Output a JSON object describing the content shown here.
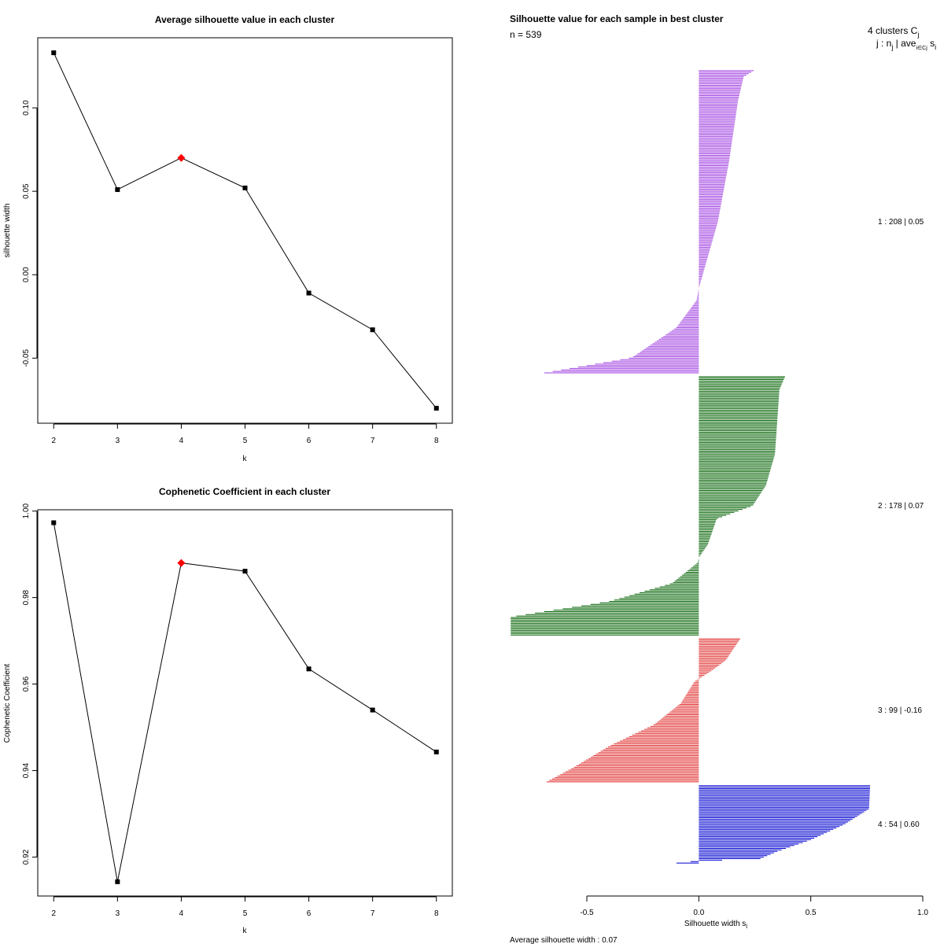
{
  "chart_data": [
    {
      "type": "line",
      "title": "Average silhouette value in each cluster",
      "xlabel": "k",
      "ylabel": "silhouette width",
      "x": [
        2,
        3,
        4,
        5,
        6,
        7,
        8
      ],
      "values": [
        0.133,
        0.051,
        0.07,
        0.052,
        -0.011,
        -0.033,
        -0.08
      ],
      "xlim": [
        1.75,
        8.25
      ],
      "ylim": [
        -0.089,
        0.142
      ],
      "xticks": [
        "2",
        "3",
        "4",
        "5",
        "6",
        "7",
        "8"
      ],
      "yticks": [
        -0.05,
        0.0,
        0.05,
        0.1
      ],
      "ytick_labels": [
        "-0.05",
        "0.00",
        "0.05",
        "0.10"
      ],
      "highlight_x": 4,
      "highlight_color": "#ff0000"
    },
    {
      "type": "line",
      "title": "Cophenetic Coefficient in each cluster",
      "xlabel": "k",
      "ylabel": "Cophenetic Coefficient",
      "x": [
        2,
        3,
        4,
        5,
        6,
        7,
        8
      ],
      "values": [
        0.9973,
        0.9143,
        0.988,
        0.9861,
        0.9635,
        0.954,
        0.9443
      ],
      "xlim": [
        1.75,
        8.25
      ],
      "ylim": [
        0.911,
        1.0003
      ],
      "xticks": [
        "2",
        "3",
        "4",
        "5",
        "6",
        "7",
        "8"
      ],
      "yticks": [
        0.92,
        0.94,
        0.96,
        0.98,
        1.0
      ],
      "ytick_labels": [
        "0.92",
        "0.94",
        "0.96",
        "0.98",
        "1.00"
      ],
      "highlight_x": 4,
      "highlight_color": "#ff0000"
    },
    {
      "type": "bar",
      "orientation": "horizontal",
      "title": "Silhouette value for each sample in best cluster",
      "subtitle": "n = 539",
      "header_line1": "4 clusters C",
      "header_line1_sub": "j",
      "header_line2": "j : n",
      "header_line2_sub": "j",
      "header_line2_rest": " | ave",
      "header_line2_sub2": "i∈Cj",
      "header_line2_tail": " s",
      "header_line2_sub3": "i",
      "xlabel": "Silhouette width s",
      "xlabel_sub": "i",
      "xlim": [
        -0.5,
        1.0
      ],
      "xticks": [
        -0.5,
        0.0,
        0.5,
        1.0
      ],
      "xtick_labels": [
        "-0.5",
        "0.0",
        "0.5",
        "1.0"
      ],
      "footer": "Average silhouette width :  0.07",
      "clusters": [
        {
          "label": "1 :  208  |  0.05",
          "n": 208,
          "avg": 0.05,
          "color": "#a040e0",
          "profile": [
            [
              0,
              0.245
            ],
            [
              0.02,
              0.2
            ],
            [
              0.1,
              0.175
            ],
            [
              0.3,
              0.135
            ],
            [
              0.5,
              0.085
            ],
            [
              0.72,
              0.0
            ],
            [
              0.76,
              -0.01
            ],
            [
              0.85,
              -0.1
            ],
            [
              0.95,
              -0.3
            ],
            [
              1.0,
              -0.69
            ]
          ]
        },
        {
          "label": "2 :  178  |  0.07",
          "n": 178,
          "avg": 0.07,
          "color": "#006000",
          "profile": [
            [
              0,
              0.385
            ],
            [
              0.05,
              0.36
            ],
            [
              0.3,
              0.34
            ],
            [
              0.42,
              0.3
            ],
            [
              0.5,
              0.24
            ],
            [
              0.55,
              0.08
            ],
            [
              0.65,
              0.04
            ],
            [
              0.7,
              0.0
            ],
            [
              0.72,
              -0.005
            ],
            [
              0.8,
              -0.12
            ],
            [
              0.87,
              -0.4
            ],
            [
              0.93,
              -0.84
            ],
            [
              1.0,
              -0.84
            ]
          ]
        },
        {
          "label": "3 :  99  |  -0.16",
          "n": 99,
          "avg": -0.16,
          "color": "#e03030",
          "profile": [
            [
              0,
              0.185
            ],
            [
              0.15,
              0.12
            ],
            [
              0.22,
              0.06
            ],
            [
              0.28,
              0.0
            ],
            [
              0.3,
              -0.02
            ],
            [
              0.45,
              -0.08
            ],
            [
              0.6,
              -0.2
            ],
            [
              0.75,
              -0.4
            ],
            [
              0.9,
              -0.56
            ],
            [
              1.0,
              -0.68
            ]
          ]
        },
        {
          "label": "4 :  54  |  0.60",
          "n": 54,
          "avg": 0.6,
          "color": "#0000d0",
          "profile": [
            [
              0,
              0.765
            ],
            [
              0.3,
              0.76
            ],
            [
              0.5,
              0.65
            ],
            [
              0.7,
              0.5
            ],
            [
              0.85,
              0.35
            ],
            [
              0.95,
              0.27
            ],
            [
              0.97,
              0.0
            ],
            [
              1.0,
              -0.1
            ]
          ]
        }
      ]
    }
  ]
}
